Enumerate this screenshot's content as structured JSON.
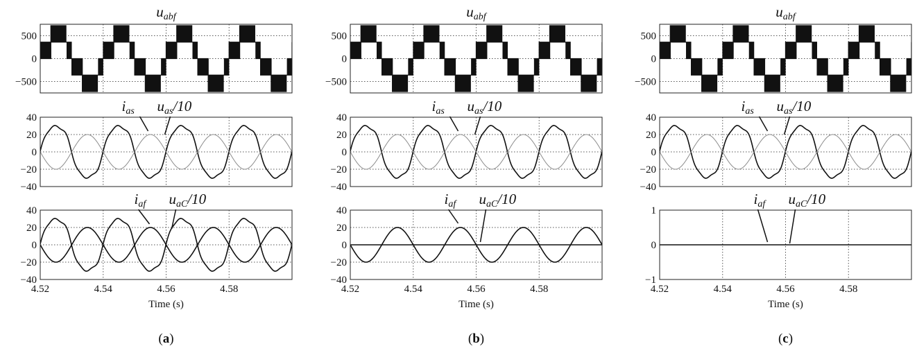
{
  "figure": {
    "panel_labels": [
      "a",
      "b",
      "c"
    ]
  },
  "chart_data": [
    {
      "panel": "a",
      "subplots": [
        {
          "type": "line",
          "title": {
            "base": "u",
            "sub": "abf"
          },
          "x": {
            "min": 4.52,
            "max": 4.6,
            "ticks": [
              4.52,
              4.54,
              4.56,
              4.58
            ]
          },
          "ylim": [
            -750,
            750
          ],
          "yticks": [
            500,
            0,
            -500
          ],
          "ytick_labels": [
            "500",
            "0",
            "−500"
          ],
          "grid": true,
          "series": [
            {
              "kind": "staircase-pwm",
              "amplitude": 720,
              "frequency_hz": 50,
              "phase_deg": 0
            }
          ]
        },
        {
          "type": "line",
          "labels": [
            {
              "base": "i",
              "sub": "as",
              "rest": ""
            },
            {
              "base": "u",
              "sub": "as",
              "rest": "/10"
            }
          ],
          "x": {
            "min": 4.52,
            "max": 4.6,
            "ticks": [
              4.52,
              4.54,
              4.56,
              4.58
            ]
          },
          "ylim": [
            -40,
            40
          ],
          "yticks": [
            40,
            20,
            0,
            -20,
            -40
          ],
          "ytick_labels": [
            "40",
            "20",
            "0",
            "−20",
            "−40"
          ],
          "grid": true,
          "series": [
            {
              "kind": "sine-distorted",
              "amplitude": 33,
              "frequency_hz": 50,
              "phase_deg": 0,
              "color": "#111111"
            },
            {
              "kind": "sine",
              "amplitude": 20,
              "frequency_hz": 50,
              "phase_deg": 180,
              "color": "#8c8c8c"
            }
          ]
        },
        {
          "type": "line",
          "labels": [
            {
              "base": "i",
              "sub": "af",
              "rest": ""
            },
            {
              "base": "u",
              "sub": "aC",
              "rest": "/10"
            }
          ],
          "x": {
            "min": 4.52,
            "max": 4.6,
            "ticks": [
              4.52,
              4.54,
              4.56,
              4.58
            ]
          },
          "xlabel": "Time (s)",
          "ylim": [
            -40,
            40
          ],
          "yticks": [
            40,
            20,
            0,
            -20,
            -40
          ],
          "ytick_labels": [
            "40",
            "20",
            "0",
            "−20",
            "−40"
          ],
          "grid": true,
          "series": [
            {
              "kind": "sine-distorted",
              "amplitude": 33,
              "frequency_hz": 50,
              "phase_deg": 0,
              "color": "#111111"
            },
            {
              "kind": "sine",
              "amplitude": 20,
              "frequency_hz": 50,
              "phase_deg": 180,
              "color": "#111111"
            }
          ]
        }
      ]
    },
    {
      "panel": "b",
      "subplots": [
        {
          "type": "line",
          "title": {
            "base": "u",
            "sub": "abf"
          },
          "x": {
            "min": 4.52,
            "max": 4.6,
            "ticks": [
              4.52,
              4.54,
              4.56,
              4.58
            ]
          },
          "ylim": [
            -750,
            750
          ],
          "yticks": [
            500,
            0,
            -500
          ],
          "ytick_labels": [
            "500",
            "0",
            "−500"
          ],
          "grid": true,
          "series": [
            {
              "kind": "staircase-pwm",
              "amplitude": 720,
              "frequency_hz": 50,
              "phase_deg": 0
            }
          ]
        },
        {
          "type": "line",
          "labels": [
            {
              "base": "i",
              "sub": "as",
              "rest": ""
            },
            {
              "base": "u",
              "sub": "as",
              "rest": "/10"
            }
          ],
          "x": {
            "min": 4.52,
            "max": 4.6,
            "ticks": [
              4.52,
              4.54,
              4.56,
              4.58
            ]
          },
          "ylim": [
            -40,
            40
          ],
          "yticks": [
            40,
            20,
            0,
            -20,
            -40
          ],
          "ytick_labels": [
            "40",
            "20",
            "0",
            "−20",
            "−40"
          ],
          "grid": true,
          "series": [
            {
              "kind": "sine-distorted",
              "amplitude": 33,
              "frequency_hz": 50,
              "phase_deg": 0,
              "color": "#111111"
            },
            {
              "kind": "sine",
              "amplitude": 20,
              "frequency_hz": 50,
              "phase_deg": 180,
              "color": "#8c8c8c"
            }
          ]
        },
        {
          "type": "line",
          "labels": [
            {
              "base": "i",
              "sub": "af",
              "rest": ""
            },
            {
              "base": "u",
              "sub": "aC",
              "rest": "/10"
            }
          ],
          "x": {
            "min": 4.52,
            "max": 4.6,
            "ticks": [
              4.52,
              4.54,
              4.56,
              4.58
            ]
          },
          "xlabel": "Time (s)",
          "ylim": [
            -40,
            40
          ],
          "yticks": [
            40,
            20,
            0,
            -20,
            -40
          ],
          "ytick_labels": [
            "40",
            "20",
            "0",
            "−20",
            "−40"
          ],
          "grid": true,
          "series": [
            {
              "kind": "sine",
              "amplitude": 20,
              "frequency_hz": 50,
              "phase_deg": 180,
              "color": "#111111"
            },
            {
              "kind": "flat",
              "value": 0,
              "color": "#111111"
            }
          ]
        }
      ]
    },
    {
      "panel": "c",
      "subplots": [
        {
          "type": "line",
          "title": {
            "base": "u",
            "sub": "abf"
          },
          "x": {
            "min": 4.52,
            "max": 4.6,
            "ticks": [
              4.52,
              4.54,
              4.56,
              4.58
            ]
          },
          "ylim": [
            -750,
            750
          ],
          "yticks": [
            500,
            0,
            -500
          ],
          "ytick_labels": [
            "500",
            "0",
            "−500"
          ],
          "grid": true,
          "series": [
            {
              "kind": "staircase-pwm",
              "amplitude": 720,
              "frequency_hz": 50,
              "phase_deg": 0
            }
          ]
        },
        {
          "type": "line",
          "labels": [
            {
              "base": "i",
              "sub": "as",
              "rest": ""
            },
            {
              "base": "u",
              "sub": "as",
              "rest": "/10"
            }
          ],
          "x": {
            "min": 4.52,
            "max": 4.6,
            "ticks": [
              4.52,
              4.54,
              4.56,
              4.58
            ]
          },
          "ylim": [
            -40,
            40
          ],
          "yticks": [
            40,
            20,
            0,
            -20,
            -40
          ],
          "ytick_labels": [
            "40",
            "20",
            "0",
            "−20",
            "−40"
          ],
          "grid": true,
          "series": [
            {
              "kind": "sine-distorted",
              "amplitude": 33,
              "frequency_hz": 50,
              "phase_deg": 0,
              "color": "#111111"
            },
            {
              "kind": "sine",
              "amplitude": 20,
              "frequency_hz": 50,
              "phase_deg": 180,
              "color": "#8c8c8c"
            }
          ]
        },
        {
          "type": "line",
          "labels": [
            {
              "base": "i",
              "sub": "af",
              "rest": ""
            },
            {
              "base": "u",
              "sub": "aC",
              "rest": "/10"
            }
          ],
          "x": {
            "min": 4.52,
            "max": 4.6,
            "ticks": [
              4.52,
              4.54,
              4.56,
              4.58
            ]
          },
          "xlabel": "Time (s)",
          "ylim": [
            -1,
            1
          ],
          "yticks": [
            1,
            0,
            -1
          ],
          "ytick_labels": [
            "1",
            "0",
            "−1"
          ],
          "grid": true,
          "series": [
            {
              "kind": "flat",
              "value": 0,
              "color": "#111111"
            }
          ]
        }
      ]
    }
  ]
}
